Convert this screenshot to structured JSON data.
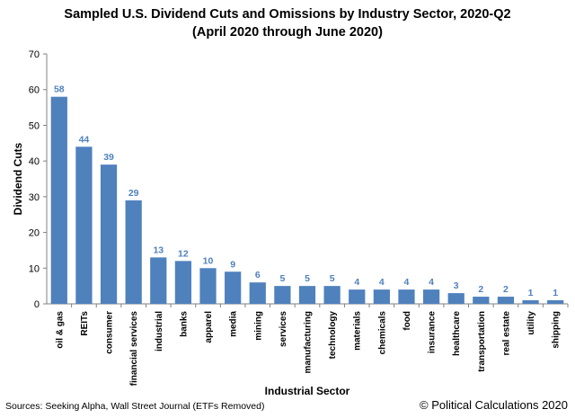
{
  "chart_data": {
    "type": "bar",
    "title": "Sampled U.S. Dividend Cuts and Omissions by Industry Sector, 2020-Q2",
    "subtitle": "(April 2020 through June 2020)",
    "xlabel": "Industrial Sector",
    "ylabel": "Dividend Cuts",
    "ylim": [
      0,
      70
    ],
    "yticks": [
      0,
      10,
      20,
      30,
      40,
      50,
      60,
      70
    ],
    "categories": [
      "oil & gas",
      "REITs",
      "consumer",
      "financial services",
      "industrial",
      "banks",
      "apparel",
      "media",
      "mining",
      "services",
      "manufacturing",
      "technology",
      "materials",
      "chemicals",
      "food",
      "insurance",
      "healthcare",
      "transportation",
      "real estate",
      "utility",
      "shipping"
    ],
    "values": [
      58,
      44,
      39,
      29,
      13,
      12,
      10,
      9,
      6,
      5,
      5,
      5,
      4,
      4,
      4,
      4,
      3,
      2,
      2,
      1,
      1
    ],
    "bar_color": "#4f81bd",
    "label_color": "#4f81bd",
    "grid": false,
    "legend": "none"
  },
  "footer": {
    "source": "Sources: Seeking Alpha, Wall Street Journal (ETFs Removed)",
    "credit": "© Political Calculations 2020"
  }
}
